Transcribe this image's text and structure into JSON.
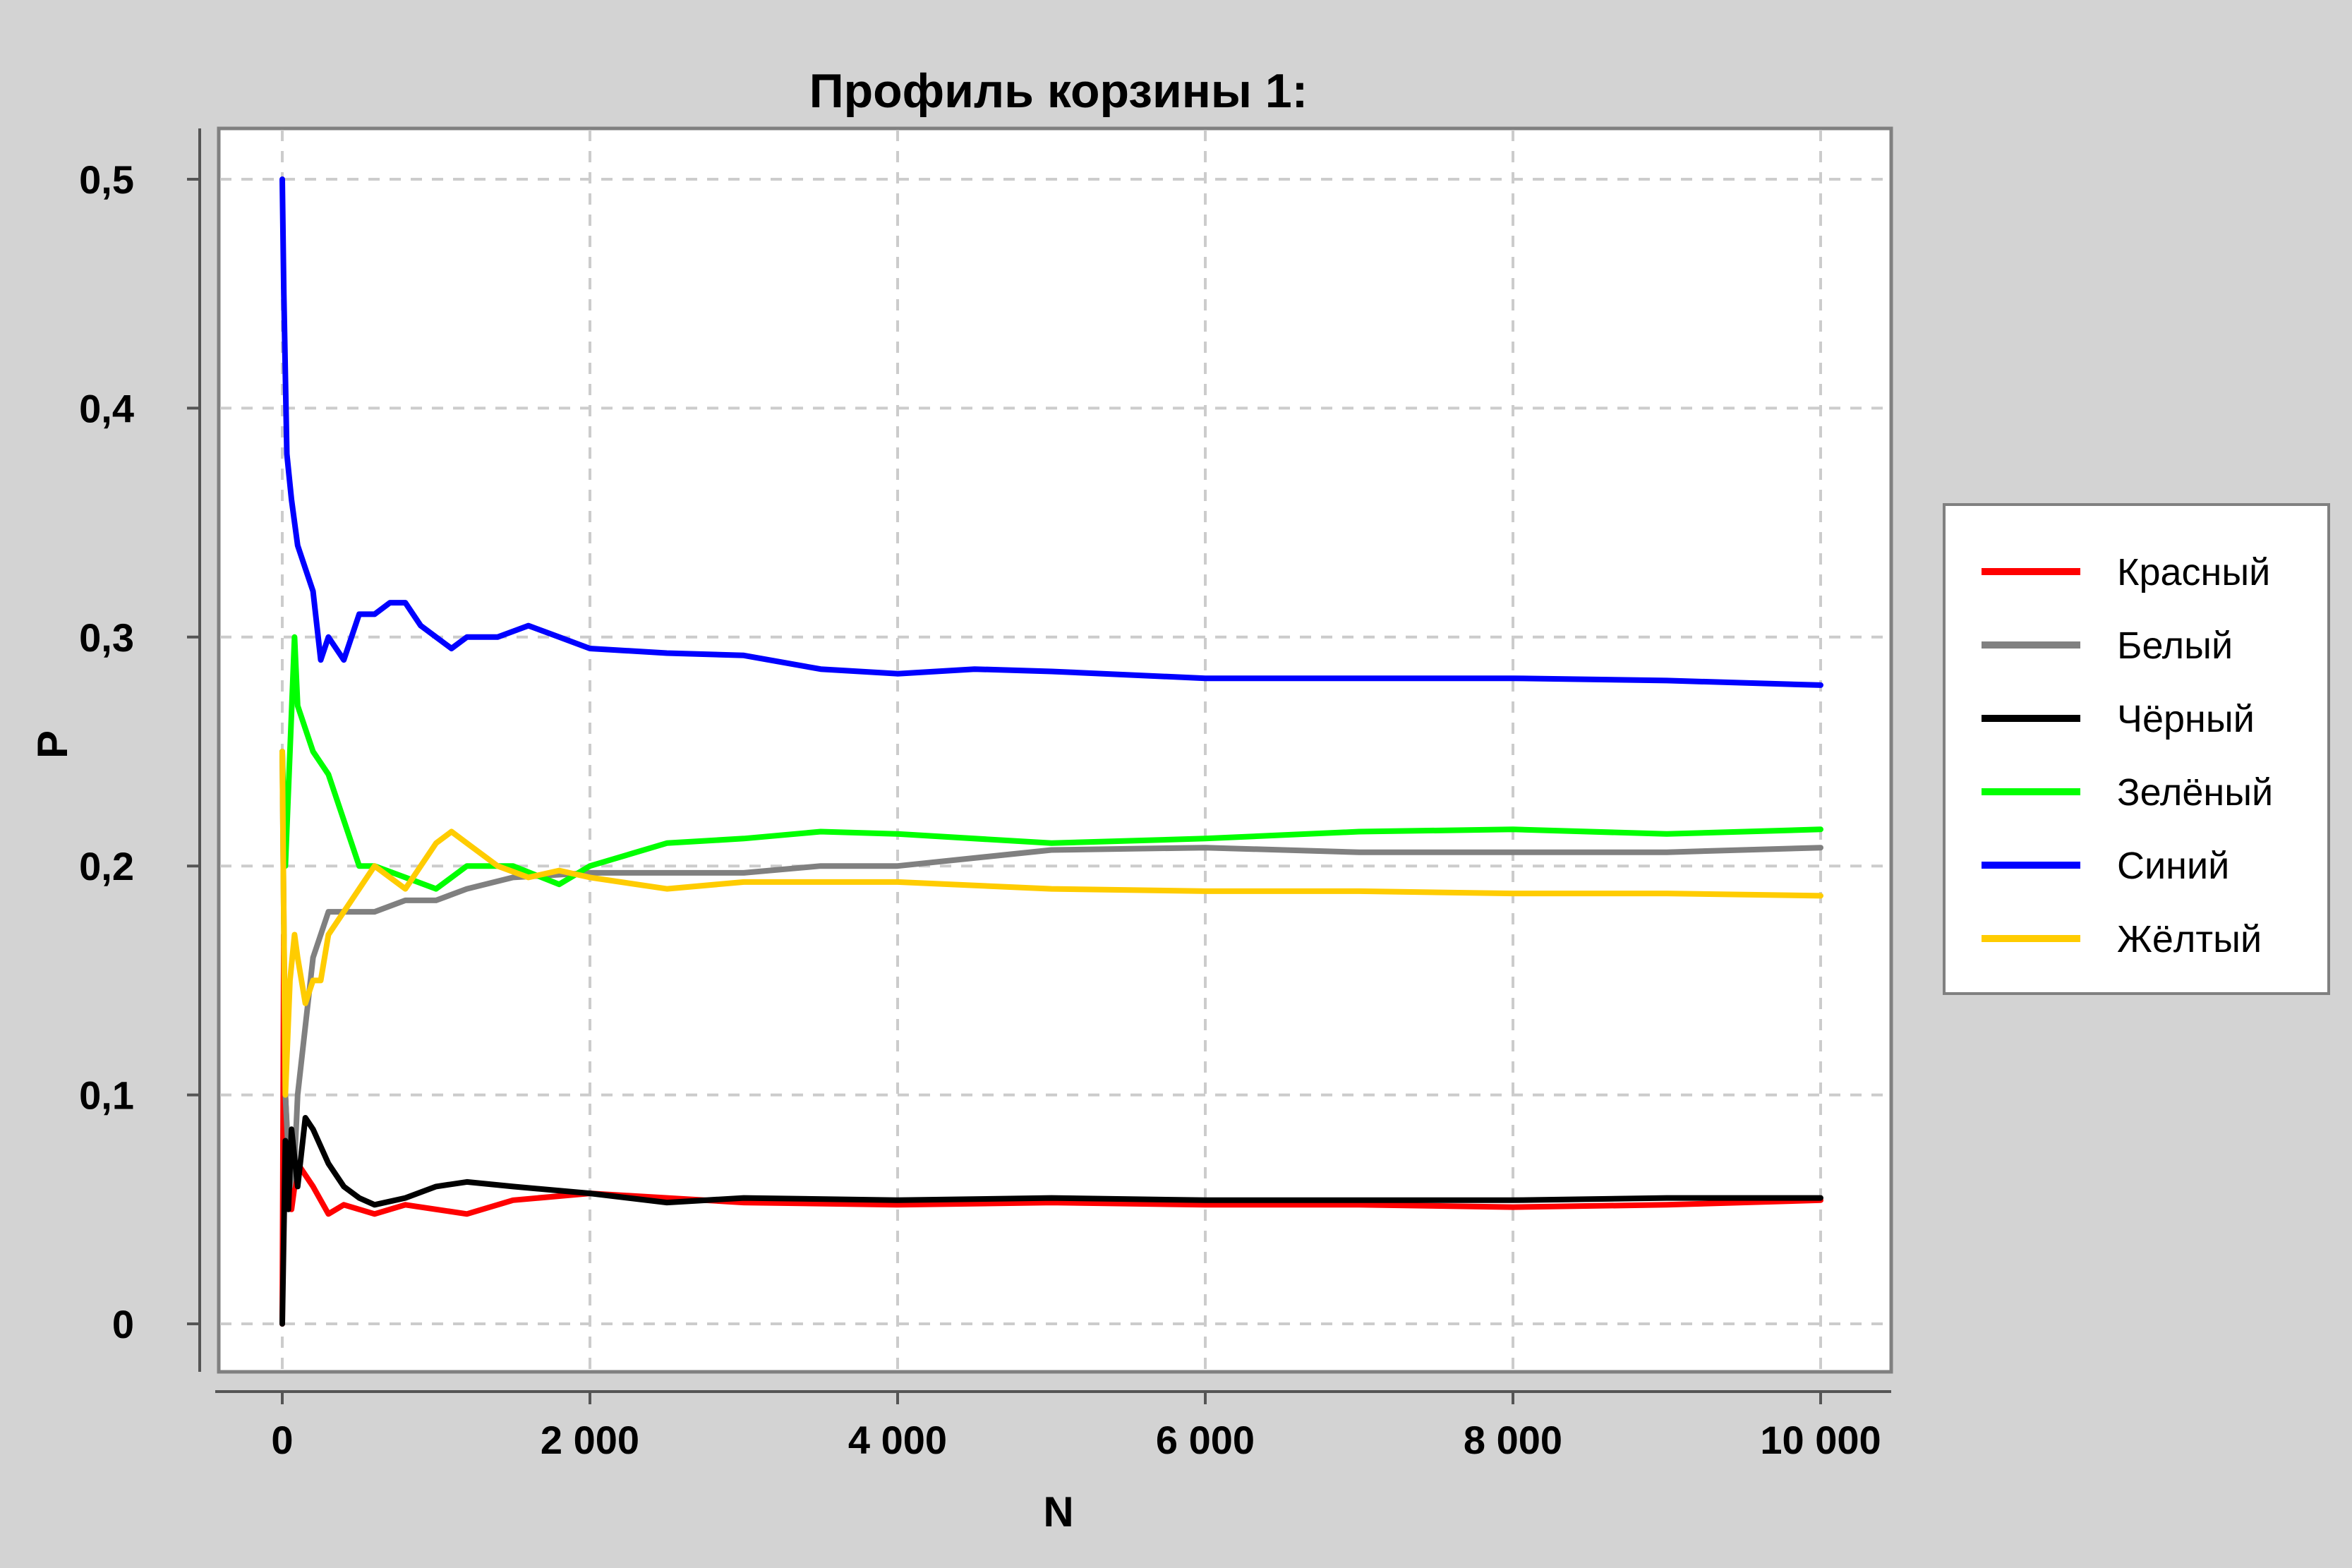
{
  "chart_data": {
    "type": "line",
    "title": "Профиль корзины 1:",
    "xlabel": "N",
    "ylabel": "P",
    "xlim": [
      0,
      10000
    ],
    "ylim": [
      0,
      0.5
    ],
    "x_ticks": [
      0,
      2000,
      4000,
      6000,
      8000,
      10000
    ],
    "x_tick_labels": [
      "0",
      "2 000",
      "4 000",
      "6 000",
      "8 000",
      "10 000"
    ],
    "y_ticks": [
      0,
      0.1,
      0.2,
      0.3,
      0.4,
      0.5
    ],
    "y_tick_labels": [
      "0",
      "0,1",
      "0,2",
      "0,3",
      "0,4",
      "0,5"
    ],
    "grid": true,
    "legend_position": "right",
    "series": [
      {
        "name": "Красный",
        "color": "#ff0000",
        "x": [
          0,
          10,
          20,
          40,
          60,
          100,
          150,
          200,
          300,
          400,
          500,
          600,
          800,
          1000,
          1200,
          1500,
          2000,
          3000,
          4000,
          5000,
          6000,
          7000,
          8000,
          9000,
          10000
        ],
        "y": [
          0.0,
          0.17,
          0.1,
          0.07,
          0.05,
          0.07,
          0.065,
          0.06,
          0.048,
          0.052,
          0.05,
          0.048,
          0.052,
          0.05,
          0.048,
          0.054,
          0.057,
          0.053,
          0.052,
          0.053,
          0.052,
          0.052,
          0.051,
          0.052,
          0.054
        ]
      },
      {
        "name": "Белый",
        "color": "#808080",
        "x": [
          0,
          20,
          50,
          80,
          100,
          150,
          200,
          300,
          400,
          600,
          800,
          1000,
          1200,
          1500,
          2000,
          2500,
          3000,
          3500,
          4000,
          5000,
          6000,
          7000,
          8000,
          9000,
          10000
        ],
        "y": [
          0.25,
          0.1,
          0.06,
          0.07,
          0.1,
          0.13,
          0.16,
          0.18,
          0.18,
          0.18,
          0.185,
          0.185,
          0.19,
          0.195,
          0.197,
          0.197,
          0.197,
          0.2,
          0.2,
          0.207,
          0.208,
          0.206,
          0.206,
          0.206,
          0.208
        ]
      },
      {
        "name": "Чёрный",
        "color": "#000000",
        "x": [
          0,
          20,
          40,
          60,
          100,
          150,
          200,
          300,
          400,
          500,
          600,
          800,
          1000,
          1200,
          1500,
          2000,
          2500,
          3000,
          4000,
          5000,
          6000,
          7000,
          8000,
          9000,
          10000
        ],
        "y": [
          0.0,
          0.08,
          0.05,
          0.085,
          0.06,
          0.09,
          0.085,
          0.07,
          0.06,
          0.055,
          0.052,
          0.055,
          0.06,
          0.062,
          0.06,
          0.057,
          0.053,
          0.055,
          0.054,
          0.055,
          0.054,
          0.054,
          0.054,
          0.055,
          0.055
        ]
      },
      {
        "name": "Зелёный",
        "color": "#00ff00",
        "x": [
          0,
          20,
          50,
          80,
          100,
          150,
          200,
          300,
          400,
          500,
          600,
          800,
          1000,
          1200,
          1500,
          1800,
          2000,
          2500,
          3000,
          3500,
          4000,
          5000,
          6000,
          7000,
          8000,
          9000,
          10000
        ],
        "y": [
          0.25,
          0.2,
          0.25,
          0.3,
          0.27,
          0.26,
          0.25,
          0.24,
          0.22,
          0.2,
          0.2,
          0.195,
          0.19,
          0.2,
          0.2,
          0.192,
          0.2,
          0.21,
          0.212,
          0.215,
          0.214,
          0.21,
          0.212,
          0.215,
          0.216,
          0.214,
          0.216
        ]
      },
      {
        "name": "Синий",
        "color": "#0000ff",
        "x": [
          0,
          10,
          30,
          60,
          100,
          150,
          200,
          250,
          300,
          400,
          500,
          600,
          700,
          800,
          900,
          1000,
          1100,
          1200,
          1400,
          1600,
          1800,
          2000,
          2500,
          3000,
          3500,
          4000,
          4500,
          5000,
          6000,
          7000,
          8000,
          9000,
          10000
        ],
        "y": [
          0.5,
          0.45,
          0.38,
          0.36,
          0.34,
          0.33,
          0.32,
          0.29,
          0.3,
          0.29,
          0.31,
          0.31,
          0.315,
          0.315,
          0.305,
          0.3,
          0.295,
          0.3,
          0.3,
          0.305,
          0.3,
          0.295,
          0.293,
          0.292,
          0.286,
          0.284,
          0.286,
          0.285,
          0.282,
          0.282,
          0.282,
          0.281,
          0.279
        ]
      },
      {
        "name": "Жёлтый",
        "color": "#ffcc00",
        "x": [
          0,
          20,
          50,
          80,
          100,
          150,
          200,
          250,
          300,
          400,
          500,
          600,
          800,
          1000,
          1100,
          1200,
          1400,
          1600,
          1800,
          2000,
          2500,
          3000,
          4000,
          5000,
          6000,
          7000,
          8000,
          9000,
          10000
        ],
        "y": [
          0.25,
          0.1,
          0.15,
          0.17,
          0.16,
          0.14,
          0.15,
          0.15,
          0.17,
          0.18,
          0.19,
          0.2,
          0.19,
          0.21,
          0.215,
          0.21,
          0.2,
          0.195,
          0.198,
          0.195,
          0.19,
          0.193,
          0.193,
          0.19,
          0.189,
          0.189,
          0.188,
          0.188,
          0.187
        ]
      }
    ]
  }
}
